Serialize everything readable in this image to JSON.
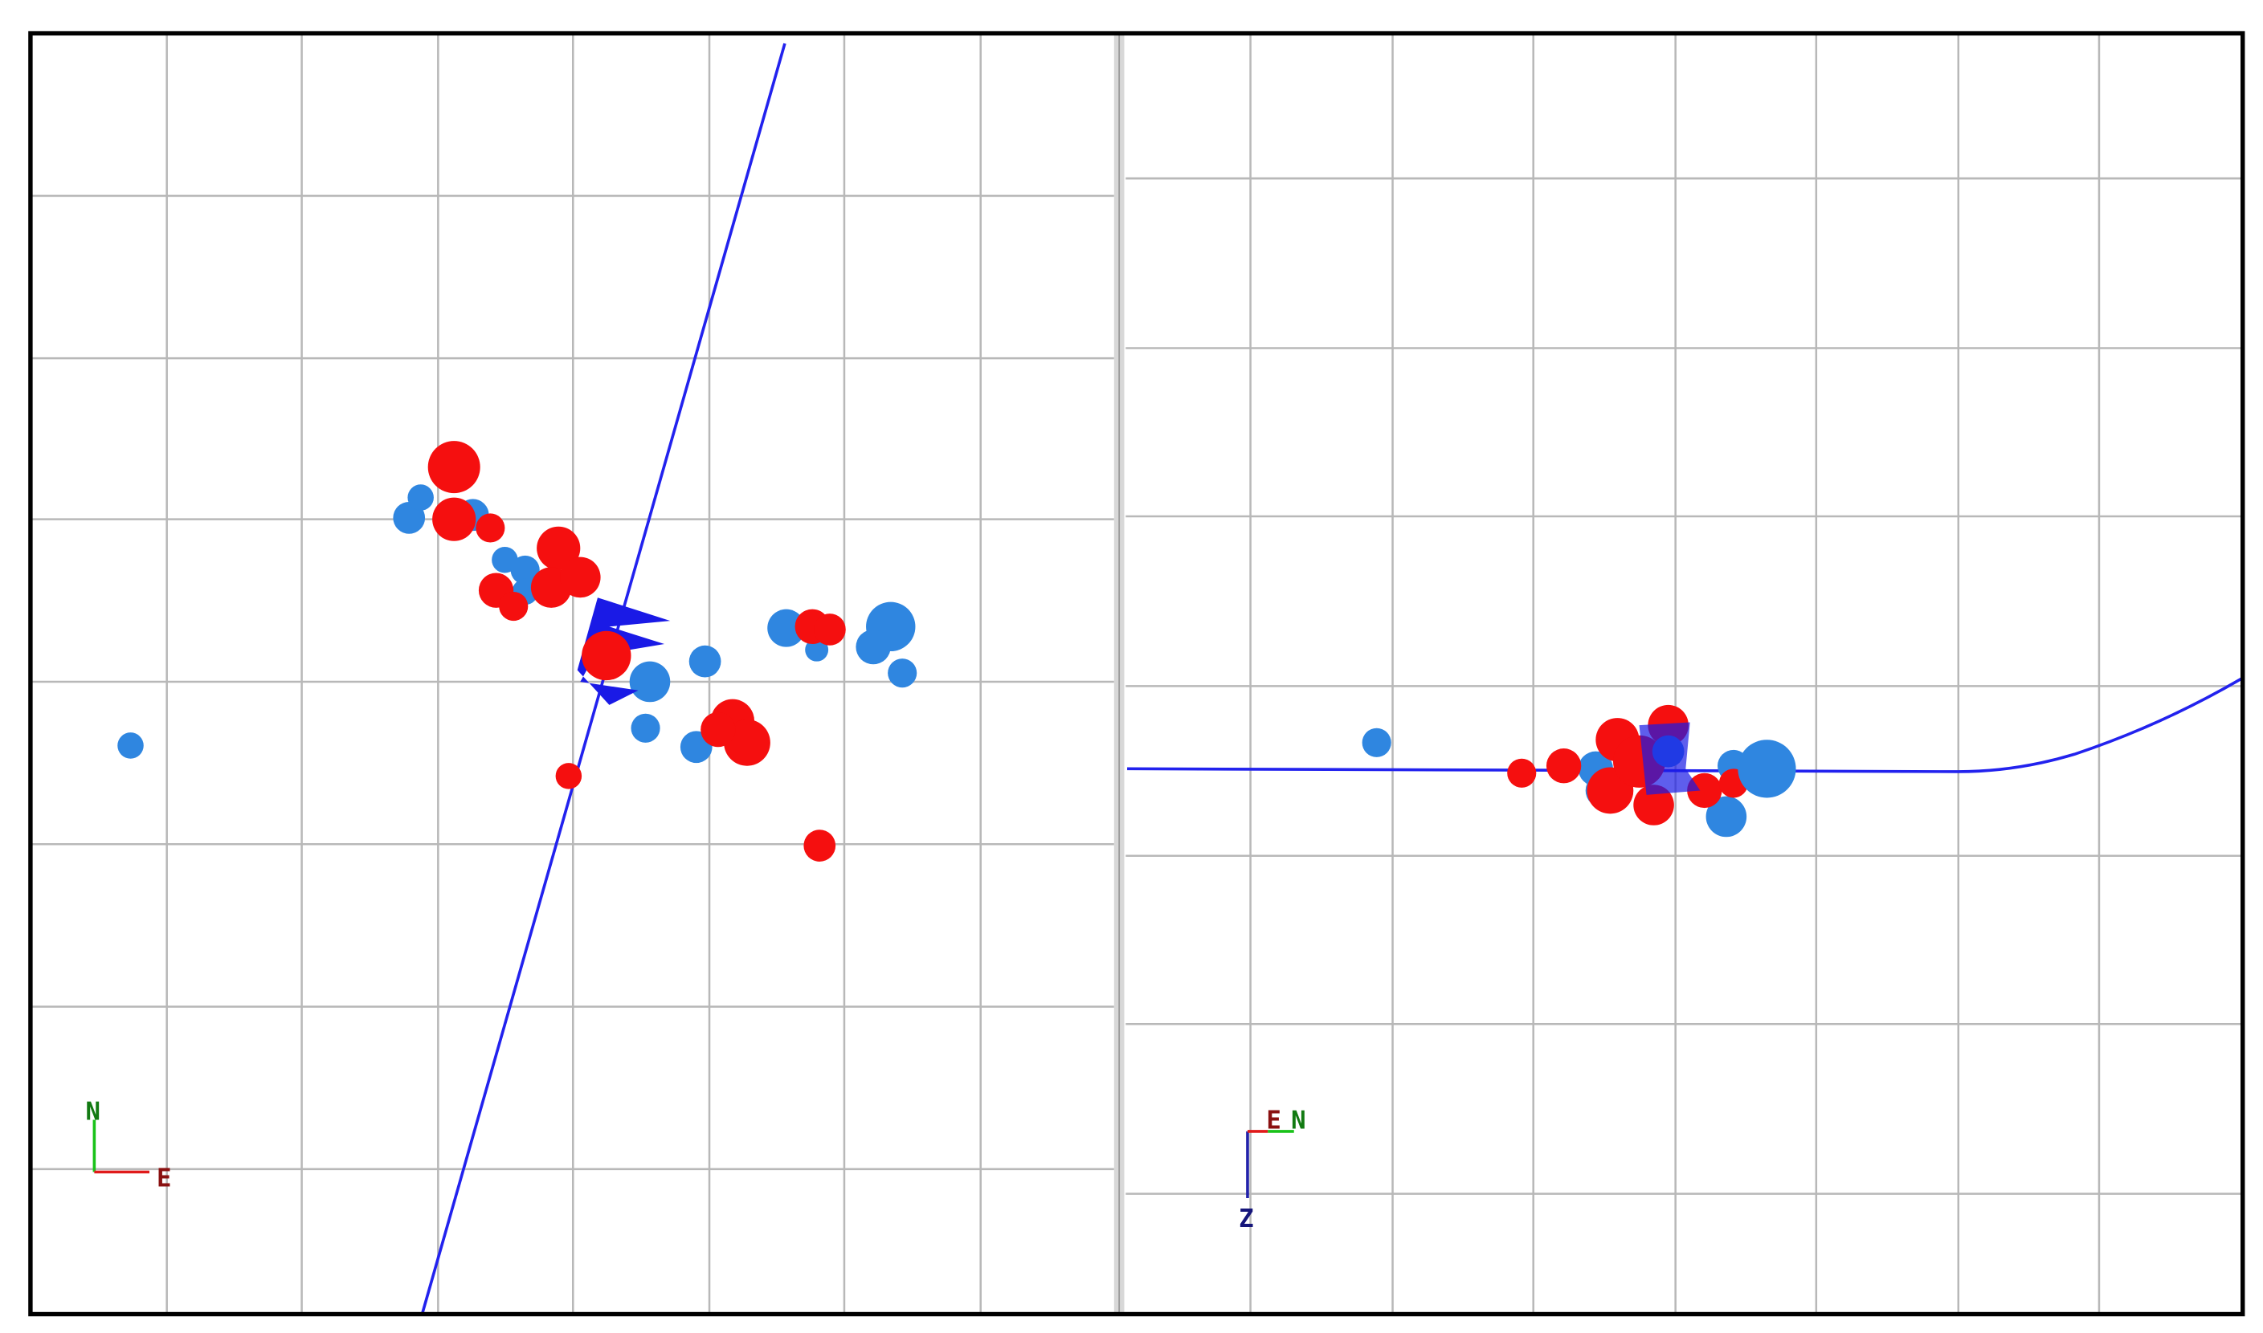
{
  "left_view": {
    "axes": {
      "north": "N",
      "east": "E"
    }
  },
  "right_view": {
    "axes": {
      "east": "E",
      "north": "N",
      "down": "Z"
    }
  }
}
